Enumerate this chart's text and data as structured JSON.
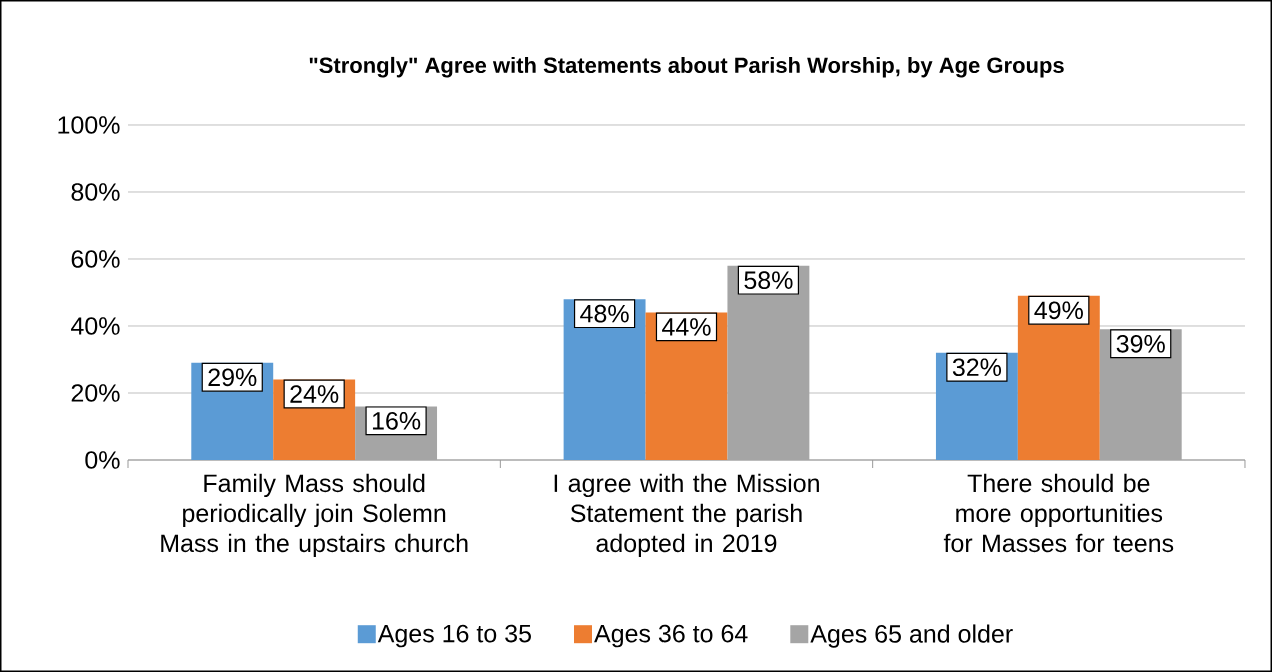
{
  "chart_data": {
    "type": "bar",
    "title": "\"Strongly\" Agree with Statements about Parish Worship, by Age Groups",
    "categories": [
      "Family Mass should periodically join Solemn Mass in the upstairs church",
      "I agree with the Mission Statement the parish adopted in 2019",
      "There should be more opportunities for Masses for teens"
    ],
    "series": [
      {
        "name": "Ages 16 to 35",
        "color": "#5b9bd5",
        "values": [
          29,
          48,
          32
        ],
        "value_labels": [
          "29%",
          "48%",
          "32%"
        ]
      },
      {
        "name": "Ages 36 to 64",
        "color": "#ed7d31",
        "values": [
          24,
          44,
          49
        ],
        "value_labels": [
          "24%",
          "44%",
          "49%"
        ]
      },
      {
        "name": "Ages 65 and older",
        "color": "#a5a5a5",
        "values": [
          16,
          58,
          39
        ],
        "value_labels": [
          "16%",
          "58%",
          "39%"
        ]
      }
    ],
    "ylim": [
      0,
      100
    ],
    "yticks": [
      {
        "value": 0,
        "label": "0%"
      },
      {
        "value": 20,
        "label": "20%"
      },
      {
        "value": 40,
        "label": "40%"
      },
      {
        "value": 60,
        "label": "60%"
      },
      {
        "value": 80,
        "label": "80%"
      },
      {
        "value": 100,
        "label": "100%"
      }
    ],
    "grid": "y",
    "legend": "bottom"
  }
}
